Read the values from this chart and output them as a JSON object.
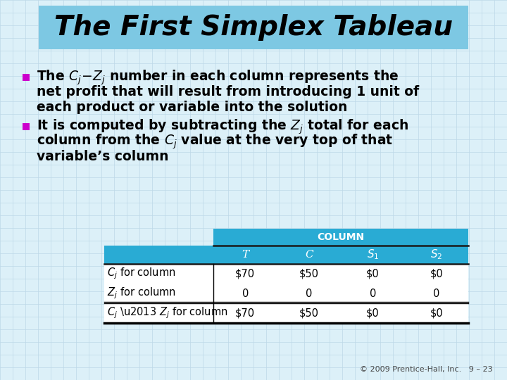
{
  "title": "The First Simplex Tableau",
  "title_bg": "#7DC8E3",
  "slide_bg": "#DCF0F8",
  "grid_color": "#BDD8E8",
  "bullet_color": "#CC00CC",
  "table_header": "COLUMN",
  "col_headers_italic": [
    "T",
    "C"
  ],
  "col_headers_sub": [
    "S",
    "S"
  ],
  "col_subs": [
    "1",
    "2"
  ],
  "table_data": [
    [
      "$70",
      "$50",
      "$0",
      "$0"
    ],
    [
      "0",
      "0",
      "0",
      "0"
    ],
    [
      "$70",
      "$50",
      "$0",
      "$0"
    ]
  ],
  "table_header_bg": "#29ABD4",
  "table_header_text": "#FFFFFF",
  "footer": "© 2009 Prentice-Hall, Inc.   9 – 23",
  "font_size_body": 13.5,
  "font_size_title": 28
}
